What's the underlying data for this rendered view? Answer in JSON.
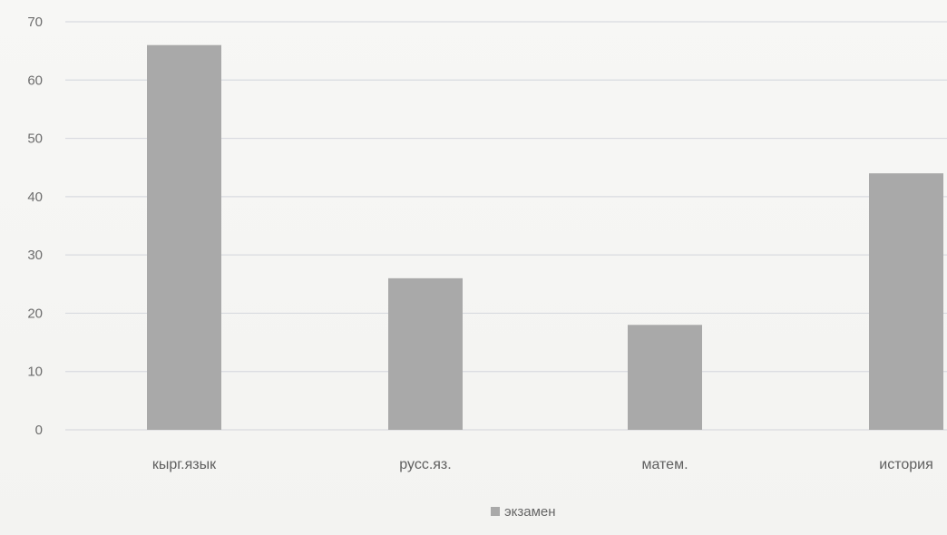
{
  "chart_data": {
    "type": "bar",
    "categories": [
      "кырг.язык",
      "русс.яз.",
      "матем.",
      "история"
    ],
    "series": [
      {
        "name": "экзамен",
        "values": [
          66,
          26,
          18,
          44
        ],
        "color": "#a9a9a9"
      }
    ],
    "ylim": [
      0,
      70
    ],
    "yticks": [
      0,
      10,
      20,
      30,
      40,
      50,
      60,
      70
    ],
    "grid": true,
    "legend_position": "bottom"
  }
}
